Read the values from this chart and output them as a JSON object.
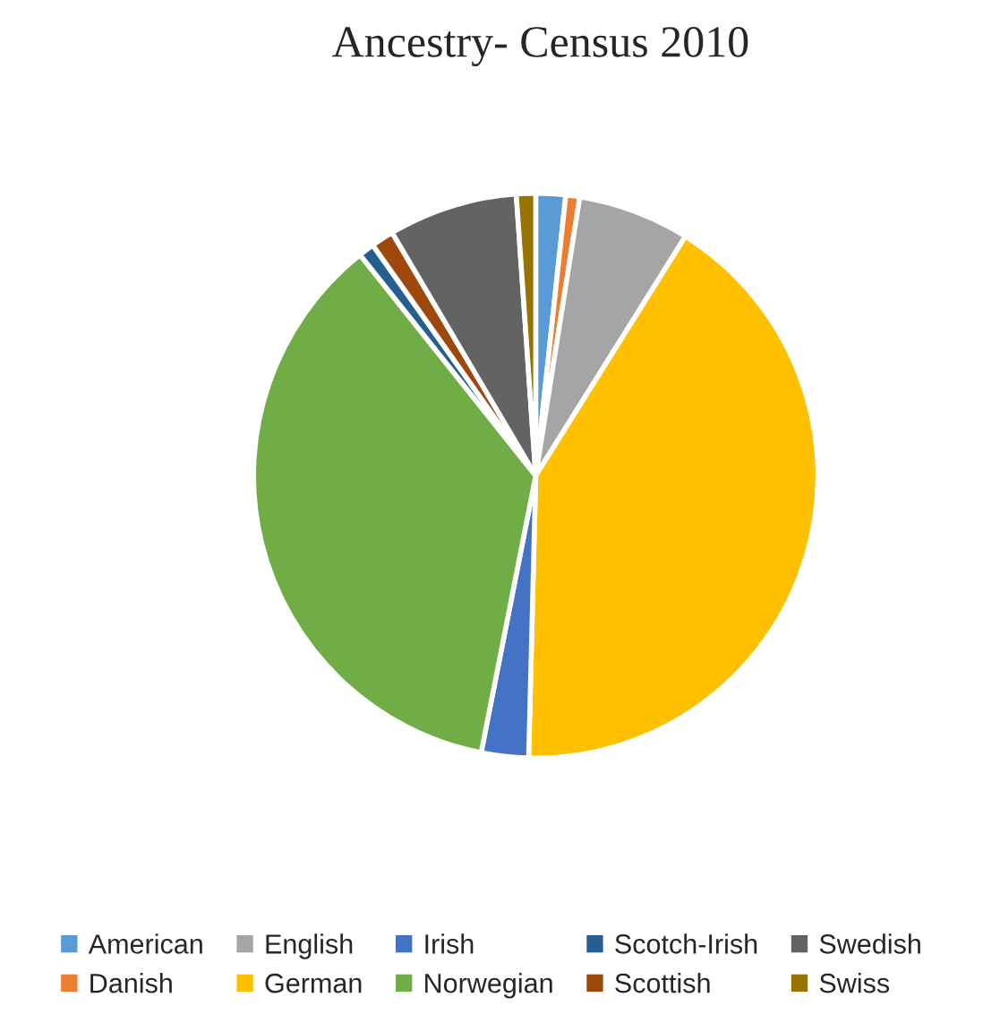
{
  "chart_data": {
    "type": "pie",
    "title": "Ancestry- Census 2010",
    "categories": [
      "American",
      "Danish",
      "English",
      "German",
      "Irish",
      "Norwegian",
      "Scotch-Irish",
      "Scottish",
      "Swedish",
      "Swiss"
    ],
    "values": [
      1.7,
      0.8,
      6.4,
      41.5,
      2.7,
      36.2,
      0.9,
      1.3,
      7.4,
      1.1
    ],
    "colors": [
      "#5b9bd5",
      "#ed7d31",
      "#a5a5a5",
      "#ffc000",
      "#4472c4",
      "#70ad47",
      "#255e91",
      "#9e480e",
      "#636363",
      "#997300"
    ],
    "legend": "bottom"
  }
}
